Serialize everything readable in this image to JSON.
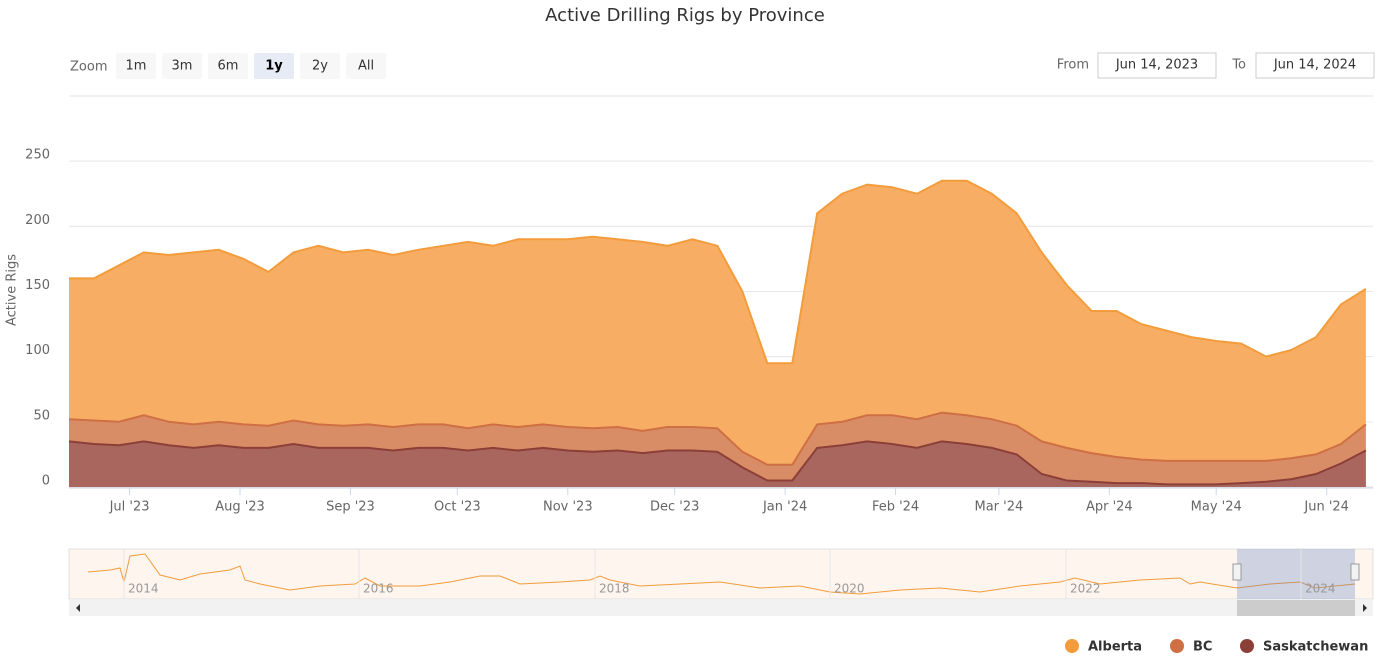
{
  "chart_data": {
    "type": "area",
    "stacked": true,
    "title": "Active Drilling Rigs by Province",
    "y_label": "Active Rigs",
    "zoom_label": "Zoom",
    "zoom_buttons": [
      "1m",
      "3m",
      "6m",
      "1y",
      "2y",
      "All"
    ],
    "zoom_selected": 3,
    "from_label": "From",
    "from_value": "Jun 14, 2023",
    "to_label": "To",
    "to_value": "Jun 14, 2024",
    "navigator_labels": [
      "2014",
      "2016",
      "2018",
      "2020",
      "2022",
      "2024"
    ],
    "x": [
      "2023-06-14",
      "2023-06-21",
      "2023-06-28",
      "2023-07-05",
      "2023-07-12",
      "2023-07-19",
      "2023-07-26",
      "2023-08-02",
      "2023-08-09",
      "2023-08-16",
      "2023-08-23",
      "2023-08-30",
      "2023-09-06",
      "2023-09-13",
      "2023-09-20",
      "2023-09-27",
      "2023-10-04",
      "2023-10-11",
      "2023-10-18",
      "2023-10-25",
      "2023-11-01",
      "2023-11-08",
      "2023-11-15",
      "2023-11-22",
      "2023-11-29",
      "2023-12-06",
      "2023-12-13",
      "2023-12-20",
      "2023-12-27",
      "2024-01-03",
      "2024-01-10",
      "2024-01-17",
      "2024-01-24",
      "2024-01-31",
      "2024-02-07",
      "2024-02-14",
      "2024-02-21",
      "2024-02-28",
      "2024-03-06",
      "2024-03-13",
      "2024-03-20",
      "2024-03-27",
      "2024-04-03",
      "2024-04-10",
      "2024-04-17",
      "2024-04-24",
      "2024-05-01",
      "2024-05-08",
      "2024-05-15",
      "2024-05-22",
      "2024-05-29",
      "2024-06-05",
      "2024-06-12"
    ],
    "xlim": [
      "2023-06-14",
      "2024-06-14"
    ],
    "xticks": [
      {
        "value": "2023-07-01",
        "label": "Jul '23"
      },
      {
        "value": "2023-08-01",
        "label": "Aug '23"
      },
      {
        "value": "2023-09-01",
        "label": "Sep '23"
      },
      {
        "value": "2023-10-01",
        "label": "Oct '23"
      },
      {
        "value": "2023-11-01",
        "label": "Nov '23"
      },
      {
        "value": "2023-12-01",
        "label": "Dec '23"
      },
      {
        "value": "2024-01-01",
        "label": "Jan '24"
      },
      {
        "value": "2024-02-01",
        "label": "Feb '24"
      },
      {
        "value": "2024-03-01",
        "label": "Mar '24"
      },
      {
        "value": "2024-04-01",
        "label": "Apr '24"
      },
      {
        "value": "2024-05-01",
        "label": "May '24"
      },
      {
        "value": "2024-06-01",
        "label": "Jun '24"
      }
    ],
    "ylim": [
      0,
      280
    ],
    "yticks": [
      0,
      50,
      100,
      150,
      200,
      250
    ],
    "grid": true,
    "legend": "bottom-right",
    "series": [
      {
        "name": "Alberta",
        "color": "#f39c3b",
        "fill": "#f7ae64",
        "values": [
          108,
          109,
          120,
          125,
          128,
          132,
          132,
          127,
          118,
          129,
          137,
          133,
          134,
          132,
          134,
          137,
          143,
          137,
          144,
          142,
          144,
          147,
          144,
          145,
          139,
          144,
          140,
          123,
          78,
          78,
          162,
          175,
          177,
          175,
          173,
          178,
          180,
          173,
          163,
          145,
          125,
          109,
          112,
          104,
          100,
          95,
          92,
          90,
          80,
          83,
          90,
          107,
          104
        ]
      },
      {
        "name": "BC",
        "color": "#cf6f44",
        "fill": "#d98d66",
        "values": [
          17,
          18,
          18,
          20,
          18,
          18,
          18,
          18,
          17,
          18,
          18,
          17,
          18,
          18,
          18,
          18,
          17,
          18,
          18,
          18,
          18,
          18,
          18,
          17,
          18,
          18,
          18,
          12,
          12,
          12,
          18,
          18,
          20,
          22,
          22,
          22,
          22,
          22,
          22,
          25,
          25,
          22,
          20,
          18,
          18,
          18,
          18,
          17,
          16,
          16,
          15,
          15,
          20
        ]
      },
      {
        "name": "Saskatchewan",
        "color": "#8c3f37",
        "fill": "#a9665f",
        "values": [
          35,
          33,
          32,
          35,
          32,
          30,
          32,
          30,
          30,
          33,
          30,
          30,
          30,
          28,
          30,
          30,
          28,
          30,
          28,
          30,
          28,
          27,
          28,
          26,
          28,
          28,
          27,
          15,
          5,
          5,
          30,
          32,
          35,
          33,
          30,
          35,
          33,
          30,
          25,
          10,
          5,
          4,
          3,
          3,
          2,
          2,
          2,
          3,
          4,
          6,
          10,
          18,
          28
        ]
      }
    ]
  }
}
